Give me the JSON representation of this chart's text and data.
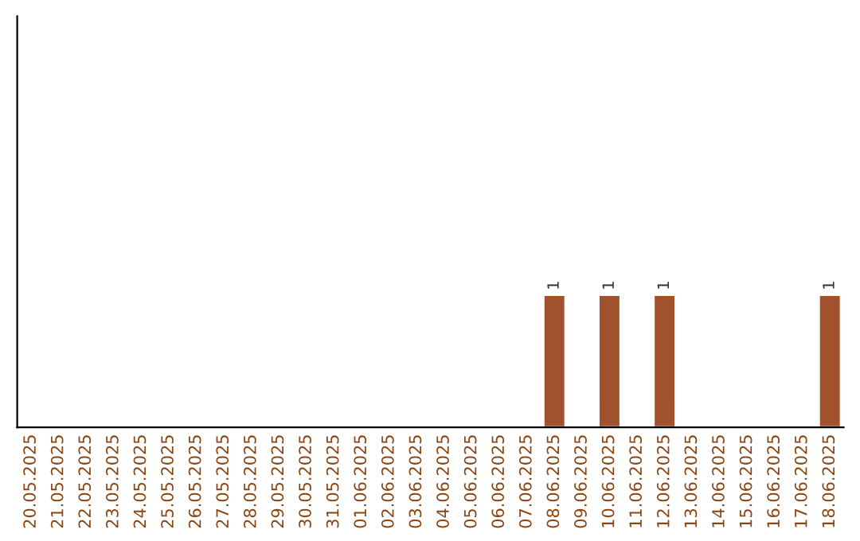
{
  "chart_data": {
    "type": "bar",
    "categories": [
      "20.05.2025",
      "21.05.2025",
      "22.05.2025",
      "23.05.2025",
      "24.05.2025",
      "25.05.2025",
      "26.05.2025",
      "27.05.2025",
      "28.05.2025",
      "29.05.2025",
      "30.05.2025",
      "31.05.2025",
      "01.06.2025",
      "02.06.2025",
      "03.06.2025",
      "04.06.2025",
      "05.06.2025",
      "06.06.2025",
      "07.06.2025",
      "08.06.2025",
      "09.06.2025",
      "10.06.2025",
      "11.06.2025",
      "12.06.2025",
      "13.06.2025",
      "14.06.2025",
      "15.06.2025",
      "16.06.2025",
      "17.06.2025",
      "18.06.2025"
    ],
    "values": [
      null,
      null,
      null,
      null,
      null,
      null,
      null,
      null,
      null,
      null,
      null,
      null,
      null,
      null,
      null,
      null,
      null,
      null,
      null,
      1,
      null,
      1,
      null,
      1,
      null,
      null,
      null,
      null,
      null,
      1
    ],
    "data_labels": true,
    "color": "#a0522d",
    "ylim": [
      0,
      3.1
    ],
    "tick_labels": "x",
    "grid": false
  }
}
